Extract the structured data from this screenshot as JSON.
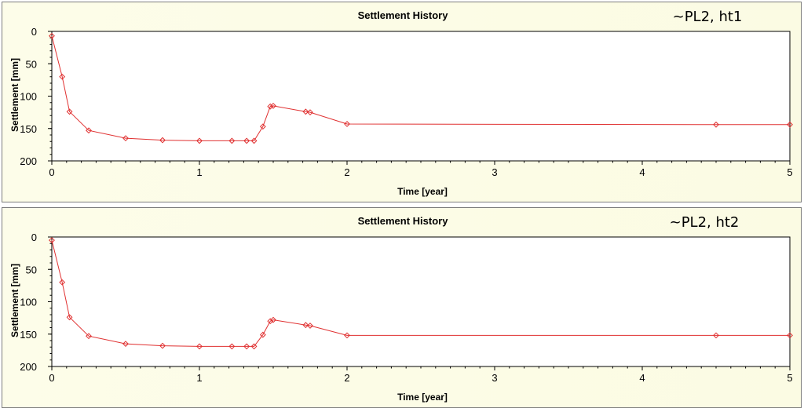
{
  "colors": {
    "series": "#e03030",
    "panel_bg": "#fbfbe4",
    "frame": "#7d7d7d"
  },
  "chart_data": [
    {
      "type": "line",
      "title": "Settlement History",
      "annotation": "~PL2, ht1",
      "xlabel": "Time [year]",
      "ylabel": "Settlement [mm]",
      "xlim": [
        0,
        5
      ],
      "ylim": [
        0,
        200
      ],
      "y_inverted": true,
      "x_ticks": [
        "0",
        "1",
        "2",
        "3",
        "4",
        "5"
      ],
      "y_ticks": [
        "0",
        "50",
        "100",
        "150",
        "200"
      ],
      "grid": false,
      "series": [
        {
          "x": [
            0,
            0.07,
            0.12,
            0.25,
            0.5,
            0.75,
            1.0,
            1.22,
            1.32,
            1.37,
            1.43,
            1.48,
            1.5,
            1.72,
            1.75,
            2.0,
            4.5,
            5.0
          ],
          "y": [
            7,
            70,
            124,
            153,
            165,
            168,
            169,
            169,
            169,
            169,
            147,
            116,
            115,
            124,
            125,
            143,
            144,
            144
          ]
        }
      ]
    },
    {
      "type": "line",
      "title": "Settlement History",
      "annotation": "~PL2, ht2",
      "xlabel": "Time [year]",
      "ylabel": "Settlement [mm]",
      "xlim": [
        0,
        5
      ],
      "ylim": [
        0,
        200
      ],
      "y_inverted": true,
      "x_ticks": [
        "0",
        "1",
        "2",
        "3",
        "4",
        "5"
      ],
      "y_ticks": [
        "0",
        "50",
        "100",
        "150",
        "200"
      ],
      "grid": false,
      "series": [
        {
          "x": [
            0,
            0.07,
            0.12,
            0.25,
            0.5,
            0.75,
            1.0,
            1.22,
            1.32,
            1.37,
            1.43,
            1.48,
            1.5,
            1.72,
            1.75,
            2.0,
            4.5,
            5.0
          ],
          "y": [
            5,
            70,
            124,
            153,
            165,
            168,
            169,
            169,
            169,
            169,
            151,
            130,
            128,
            136,
            137,
            152,
            152,
            152
          ]
        }
      ]
    }
  ]
}
